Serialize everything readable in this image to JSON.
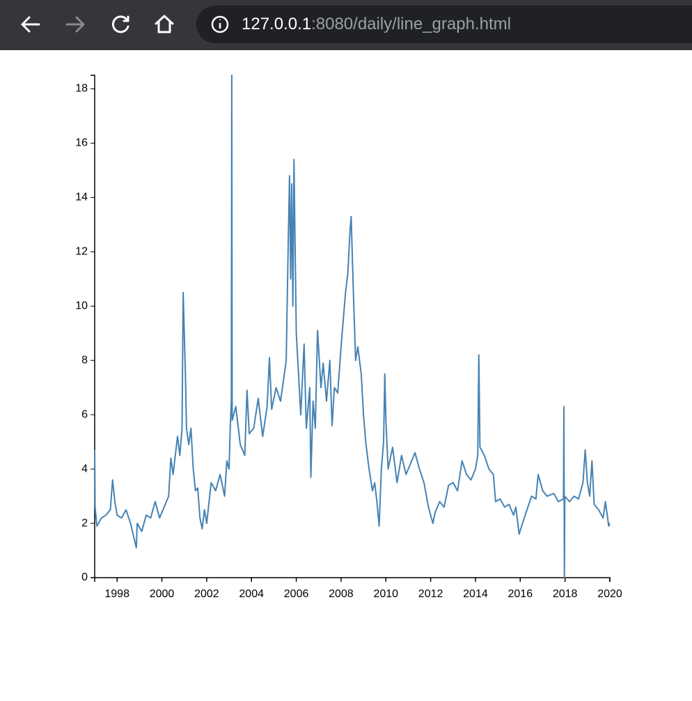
{
  "browser": {
    "url_host": "127.0.0.1",
    "url_rest": ":8080/daily/line_graph.html"
  },
  "chart_data": {
    "type": "line",
    "color": "#4682b4",
    "xlim": [
      1997,
      2020
    ],
    "ylim": [
      0,
      18.5
    ],
    "xticks": [
      1998,
      2000,
      2002,
      2004,
      2006,
      2008,
      2010,
      2012,
      2014,
      2016,
      2018,
      2020
    ],
    "yticks": [
      0,
      2,
      4,
      6,
      8,
      10,
      12,
      14,
      16,
      18
    ],
    "x": [
      1997.0,
      1997.02,
      1997.1,
      1997.3,
      1997.5,
      1997.7,
      1997.8,
      1997.9,
      1998.0,
      1998.2,
      1998.4,
      1998.6,
      1998.86,
      1998.9,
      1999.1,
      1999.3,
      1999.5,
      1999.7,
      1999.9,
      2000.1,
      2000.3,
      2000.4,
      2000.5,
      2000.6,
      2000.7,
      2000.8,
      2000.9,
      2000.95,
      2001.0,
      2001.05,
      2001.1,
      2001.2,
      2001.3,
      2001.4,
      2001.5,
      2001.6,
      2001.7,
      2001.8,
      2001.9,
      2002.0,
      2002.2,
      2002.4,
      2002.6,
      2002.8,
      2002.9,
      2003.0,
      2003.05,
      2003.1,
      2003.12,
      2003.14,
      2003.3,
      2003.5,
      2003.7,
      2003.8,
      2003.9,
      2004.1,
      2004.3,
      2004.5,
      2004.7,
      2004.8,
      2004.9,
      2005.1,
      2005.3,
      2005.45,
      2005.55,
      2005.65,
      2005.7,
      2005.75,
      2005.8,
      2005.85,
      2005.9,
      2005.95,
      2006.0,
      2006.1,
      2006.2,
      2006.35,
      2006.45,
      2006.6,
      2006.65,
      2006.75,
      2006.85,
      2006.95,
      2007.1,
      2007.2,
      2007.35,
      2007.5,
      2007.6,
      2007.7,
      2007.85,
      2008.0,
      2008.1,
      2008.2,
      2008.3,
      2008.4,
      2008.45,
      2008.55,
      2008.65,
      2008.75,
      2008.9,
      2009.0,
      2009.1,
      2009.25,
      2009.4,
      2009.5,
      2009.6,
      2009.7,
      2009.8,
      2009.9,
      2009.95,
      2010.0,
      2010.1,
      2010.3,
      2010.5,
      2010.7,
      2010.9,
      2011.1,
      2011.3,
      2011.5,
      2011.7,
      2011.9,
      2012.1,
      2012.2,
      2012.4,
      2012.6,
      2012.8,
      2013.0,
      2013.2,
      2013.4,
      2013.6,
      2013.8,
      2014.0,
      2014.1,
      2014.15,
      2014.2,
      2014.4,
      2014.6,
      2014.8,
      2014.9,
      2015.1,
      2015.3,
      2015.5,
      2015.7,
      2015.8,
      2015.95,
      2016.1,
      2016.3,
      2016.5,
      2016.7,
      2016.8,
      2017.0,
      2017.2,
      2017.5,
      2017.7,
      2017.93,
      2017.95,
      2017.97,
      2017.99,
      2018.2,
      2018.4,
      2018.6,
      2018.8,
      2018.9,
      2019.0,
      2019.1,
      2019.2,
      2019.3,
      2019.5,
      2019.7,
      2019.8,
      2019.95,
      2020.0
    ],
    "series": [
      {
        "values": [
          4.7,
          2.6,
          1.9,
          2.2,
          2.3,
          2.5,
          3.6,
          2.8,
          2.3,
          2.2,
          2.5,
          2.0,
          1.1,
          2.0,
          1.7,
          2.3,
          2.2,
          2.8,
          2.2,
          2.6,
          3.0,
          4.4,
          3.8,
          4.5,
          5.2,
          4.5,
          5.5,
          10.5,
          9.0,
          7.5,
          5.5,
          4.9,
          5.5,
          4.0,
          3.2,
          3.3,
          2.2,
          1.8,
          2.5,
          2.0,
          3.5,
          3.2,
          3.8,
          3.0,
          4.3,
          4.0,
          5.5,
          6.5,
          18.5,
          5.8,
          6.3,
          4.9,
          4.5,
          6.9,
          5.3,
          5.5,
          6.6,
          5.2,
          6.3,
          8.1,
          6.2,
          7.0,
          6.5,
          7.4,
          8.0,
          12.7,
          14.8,
          11.0,
          14.5,
          10.0,
          15.4,
          12.0,
          9.0,
          7.5,
          6.0,
          8.6,
          5.5,
          7.0,
          3.7,
          6.5,
          5.5,
          9.1,
          7.0,
          7.9,
          6.5,
          8.0,
          5.6,
          7.0,
          6.8,
          8.5,
          9.5,
          10.5,
          11.2,
          12.8,
          13.3,
          10.5,
          8.0,
          8.5,
          7.5,
          6.0,
          5.0,
          4.0,
          3.2,
          3.5,
          2.8,
          1.9,
          4.0,
          5.0,
          7.5,
          5.8,
          4.0,
          4.8,
          3.5,
          4.5,
          3.8,
          4.2,
          4.6,
          4.0,
          3.5,
          2.6,
          2.0,
          2.4,
          2.8,
          2.6,
          3.4,
          3.5,
          3.2,
          4.3,
          3.8,
          3.6,
          4.0,
          4.5,
          8.2,
          4.8,
          4.5,
          4.0,
          3.8,
          2.8,
          2.9,
          2.6,
          2.7,
          2.3,
          2.6,
          1.6,
          2.0,
          2.5,
          3.0,
          2.9,
          3.8,
          3.2,
          3.0,
          3.1,
          2.8,
          2.9,
          6.3,
          0.0,
          3.0,
          2.8,
          3.0,
          2.9,
          3.5,
          4.7,
          3.5,
          3.0,
          4.3,
          2.7,
          2.5,
          2.2,
          2.8,
          1.9,
          2.0
        ]
      }
    ]
  }
}
